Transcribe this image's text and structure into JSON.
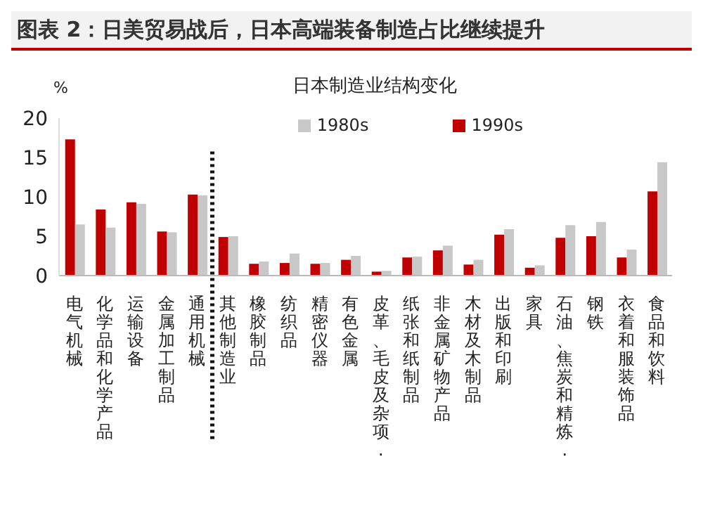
{
  "chart_data": {
    "type": "bar",
    "title": "图表 2：日美贸易战后，日本高端装备制造占比继续提升",
    "subtitle": "日本制造业结构变化",
    "ylabel": "%",
    "categories": [
      "电气机械",
      "化学品和化学产品",
      "运输设备",
      "金属加工制品",
      "通用机械",
      "其他制造业",
      "橡胶制品",
      "纺织品",
      "精密仪器",
      "有色金属",
      "皮革、毛皮及杂项.",
      "纸张和纸制品",
      "非金属矿物产品",
      "木材及木制品",
      "出版和印刷",
      "家具",
      "石油、焦炭和精炼.",
      "钢铁",
      "衣着和服装饰品",
      "食品和饮料"
    ],
    "series": [
      {
        "name": "1990s",
        "color": "#c00000",
        "values": [
          17.3,
          8.4,
          9.3,
          5.6,
          10.3,
          4.9,
          1.5,
          1.6,
          1.5,
          2.0,
          0.5,
          2.3,
          3.2,
          1.4,
          5.2,
          1.0,
          4.8,
          5.0,
          2.3,
          10.7
        ]
      },
      {
        "name": "1980s",
        "color": "#c8c8c8",
        "values": [
          6.5,
          6.1,
          9.1,
          5.5,
          10.2,
          5.0,
          1.8,
          2.8,
          1.6,
          2.5,
          0.6,
          2.4,
          3.8,
          2.0,
          5.9,
          1.3,
          6.4,
          6.8,
          3.3,
          14.4
        ]
      }
    ],
    "ylim": [
      0,
      20
    ],
    "yticks": [
      0,
      5,
      10,
      15,
      20
    ],
    "legend": "top right"
  }
}
